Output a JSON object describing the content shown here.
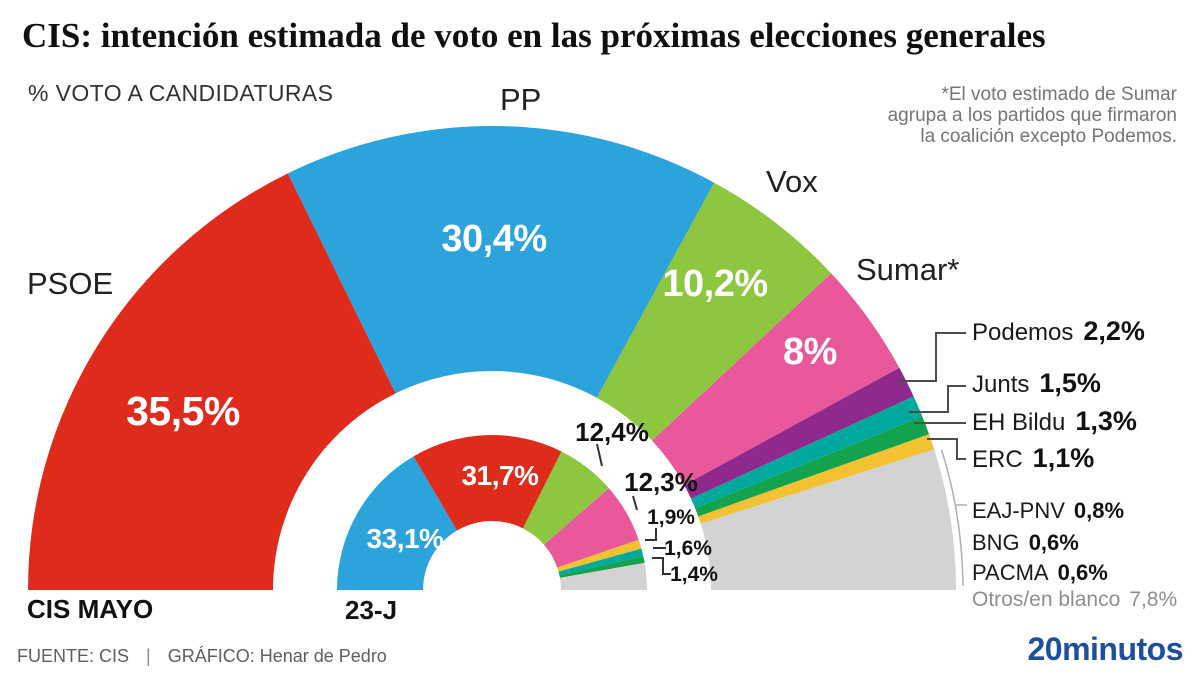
{
  "title": "CIS: intención estimada de voto en las próximas elecciones generales",
  "subtitle": "% VOTO A CANDIDATURAS",
  "note": {
    "lines": [
      "*El voto estimado de Sumar",
      "agrupa a los partidos que firmaron",
      "la coalición excepto Podemos."
    ]
  },
  "footer": {
    "source": "FUENTE: CIS",
    "divider": "|",
    "credit": "GRÁFICO: Henar de Pedro",
    "logo": "20minutos",
    "logo_color": "#1d4f9c"
  },
  "chart_data": {
    "type": "half-donut",
    "unit": "% voto a candidaturas",
    "legend_position": "right",
    "colors": {
      "psoe": "#df2b1c",
      "pp": "#2da3db",
      "vox": "#8dc63f",
      "sumar": "#e8589b",
      "podemos": "#8f2a8c",
      "junts": "#00a99d",
      "ehbildu": "#13a24e",
      "erc": "#f2c233",
      "grey": "#d3d3d3"
    },
    "rings": [
      {
        "id": "cis-mayo",
        "label": "CIS MAYO",
        "segments": [
          {
            "party": "PSOE",
            "value": 35.5,
            "display": "35,5%",
            "color": "psoe"
          },
          {
            "party": "PP",
            "value": 30.4,
            "display": "30,4%",
            "color": "pp"
          },
          {
            "party": "Vox",
            "value": 10.2,
            "display": "10,2%",
            "color": "vox"
          },
          {
            "party": "Sumar*",
            "value": 8,
            "display": "8%",
            "color": "sumar"
          },
          {
            "party": "Podemos",
            "value": 2.2,
            "display": "2,2%",
            "color": "podemos"
          },
          {
            "party": "Junts",
            "value": 1.5,
            "display": "1,5%",
            "color": "junts"
          },
          {
            "party": "EH Bildu",
            "value": 1.3,
            "display": "1,3%",
            "color": "ehbildu"
          },
          {
            "party": "ERC",
            "value": 1.1,
            "display": "1,1%",
            "color": "erc"
          },
          {
            "party": "EAJ-PNV",
            "value": 0.8,
            "display": "0,8%",
            "color": "grey"
          },
          {
            "party": "BNG",
            "value": 0.6,
            "display": "0,6%",
            "color": "grey"
          },
          {
            "party": "PACMA",
            "value": 0.6,
            "display": "0,6%",
            "color": "grey"
          },
          {
            "party": "Otros/en blanco",
            "value": 7.8,
            "display": "7,8%",
            "color": "grey"
          }
        ]
      },
      {
        "id": "23j",
        "label": "23-J",
        "segments": [
          {
            "party": "PP",
            "value": 33.1,
            "display": "33,1%",
            "color": "pp"
          },
          {
            "party": "PSOE",
            "value": 31.7,
            "display": "31,7%",
            "color": "psoe"
          },
          {
            "party": "Vox",
            "value": 12.4,
            "display": "12,4%",
            "color": "vox"
          },
          {
            "party": "Sumar",
            "value": 12.3,
            "display": "12,3%",
            "color": "sumar"
          },
          {
            "party": "ERC",
            "value": 1.9,
            "display": "1,9%",
            "color": "erc"
          },
          {
            "party": "Junts",
            "value": 1.6,
            "display": "1,6%",
            "color": "junts"
          },
          {
            "party": "EH Bildu",
            "value": 1.4,
            "display": "1,4%",
            "color": "ehbildu"
          },
          {
            "party": "Otros",
            "value": 5.6,
            "display": "",
            "color": "grey"
          }
        ]
      }
    ]
  }
}
